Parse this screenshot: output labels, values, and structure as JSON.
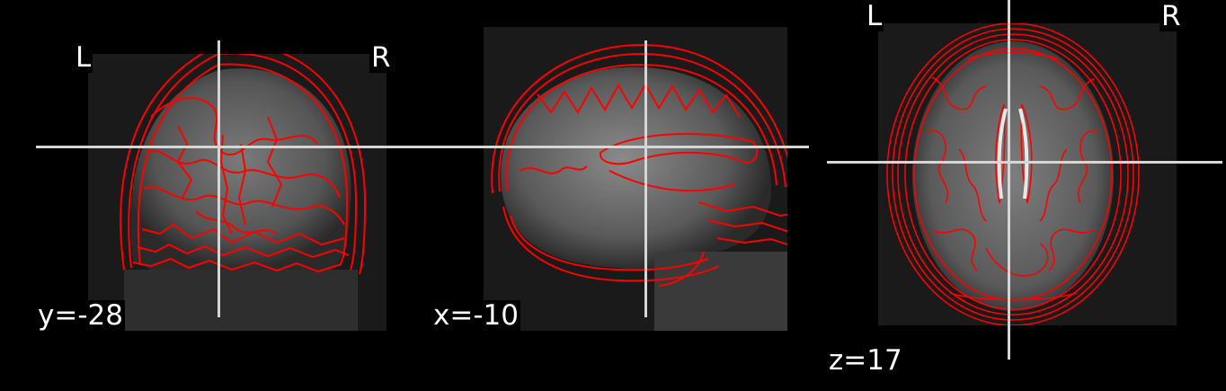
{
  "colors": {
    "background": "#000000",
    "contour": "#ff0000",
    "crosshair": "#d6d6d6",
    "text": "#ffffff"
  },
  "views": {
    "coronal": {
      "left_label": "L",
      "right_label": "R",
      "coord_label": "y=-28"
    },
    "sagittal": {
      "coord_label": "x=-10"
    },
    "axial": {
      "left_label": "L",
      "right_label": "R",
      "coord_label": "z=17"
    }
  }
}
